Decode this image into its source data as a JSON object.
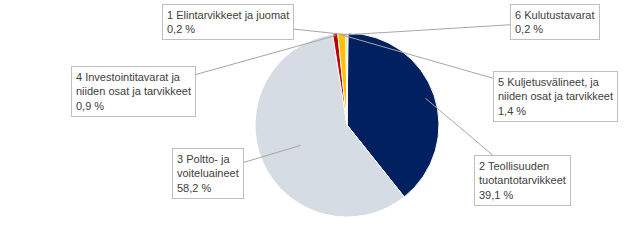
{
  "chart_data": {
    "type": "pie",
    "categories": [
      "1 Elintarvikkeet ja juomat",
      "2 Teollisuuden tuotantotarvikkeet",
      "3 Poltto- ja voiteluaineet",
      "4 Investointitavarat ja niiden osat ja tarvikkeet",
      "5 Kuljetusvälineet, ja niiden osat ja tarvikkeet",
      "6 Kulutustavarat"
    ],
    "values": [
      0.2,
      39.1,
      58.2,
      0.9,
      1.4,
      0.2
    ],
    "value_labels": [
      "0,2 %",
      "39,1 %",
      "58,2 %",
      "0,9 %",
      "1,4 %",
      "0,2 %"
    ],
    "colors": [
      "#5b9bd5",
      "#002060",
      "#d6dce4",
      "#c00000",
      "#ffc000",
      "#70ad47"
    ],
    "data_labels": true
  }
}
